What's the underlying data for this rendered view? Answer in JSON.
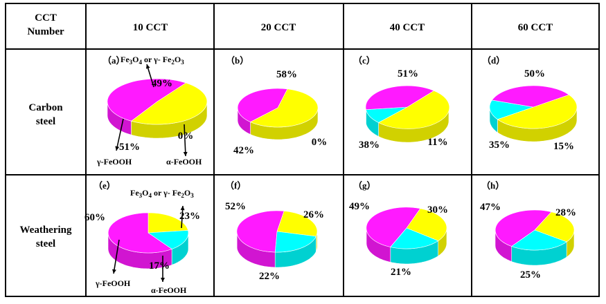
{
  "header": {
    "corner_line1": "CCT",
    "corner_line2": "Number",
    "columns": [
      "10 CCT",
      "20 CCT",
      "40 CCT",
      "60 CCT"
    ]
  },
  "rows": [
    {
      "line1": "Carbon",
      "line2": "steel"
    },
    {
      "line1": "Weathering",
      "line2": "steel"
    }
  ],
  "legend_labels": {
    "fe3o4_main": "Fe3O4  or  γ- Fe2O3",
    "gamma": "γ-FeOOH",
    "alpha": "α-FeOOH"
  },
  "colors": {
    "magenta": "#ff1aff",
    "yellow": "#ffff00",
    "cyan": "#00ffff",
    "border": "#000000"
  },
  "chart_data": [
    {
      "type": "pie",
      "panel": "(a)",
      "row": "Carbon steel",
      "cct": "10 CCT",
      "series": [
        {
          "name": "Fe3O4 or γ- Fe2O3",
          "value": 49
        },
        {
          "name": "γ-FeOOH",
          "value": 51
        },
        {
          "name": "α-FeOOH",
          "value": 0
        }
      ],
      "labels": [
        "49%",
        "51%",
        "0%"
      ]
    },
    {
      "type": "pie",
      "panel": "(b)",
      "row": "Carbon steel",
      "cct": "20 CCT",
      "series": [
        {
          "value": 58
        },
        {
          "value": 42
        },
        {
          "value": 0
        }
      ],
      "labels": [
        "58%",
        "42%",
        "0%"
      ]
    },
    {
      "type": "pie",
      "panel": "(c)",
      "row": "Carbon steel",
      "cct": "40 CCT",
      "series": [
        {
          "value": 51
        },
        {
          "value": 38
        },
        {
          "value": 11
        }
      ],
      "labels": [
        "51%",
        "38%",
        "11%"
      ]
    },
    {
      "type": "pie",
      "panel": "(d)",
      "row": "Carbon steel",
      "cct": "60 CCT",
      "series": [
        {
          "value": 50
        },
        {
          "value": 35
        },
        {
          "value": 15
        }
      ],
      "labels": [
        "50%",
        "35%",
        "15%"
      ]
    },
    {
      "type": "pie",
      "panel": "(e)",
      "row": "Weathering steel",
      "cct": "10 CCT",
      "series": [
        {
          "name": "Fe3O4 or γ- Fe2O3",
          "value": 23
        },
        {
          "name": "γ-FeOOH",
          "value": 60
        },
        {
          "name": "α-FeOOH",
          "value": 17
        }
      ],
      "labels": [
        "23%",
        "60%",
        "17%"
      ]
    },
    {
      "type": "pie",
      "panel": "(f)",
      "row": "Weathering steel",
      "cct": "20 CCT",
      "series": [
        {
          "value": 26
        },
        {
          "value": 52
        },
        {
          "value": 22
        }
      ],
      "labels": [
        "26%",
        "52%",
        "22%"
      ]
    },
    {
      "type": "pie",
      "panel": "(g)",
      "row": "Weathering steel",
      "cct": "40 CCT",
      "series": [
        {
          "value": 30
        },
        {
          "value": 49
        },
        {
          "value": 21
        }
      ],
      "labels": [
        "30%",
        "49%",
        "21%"
      ]
    },
    {
      "type": "pie",
      "panel": "(h)",
      "row": "Weathering steel",
      "cct": "60 CCT",
      "series": [
        {
          "value": 28
        },
        {
          "value": 47
        },
        {
          "value": 25
        }
      ],
      "labels": [
        "28%",
        "47%",
        "25%"
      ]
    }
  ]
}
